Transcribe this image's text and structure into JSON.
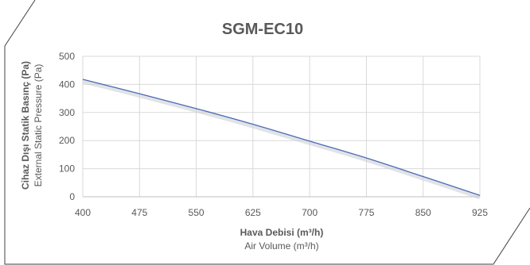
{
  "chart_data": {
    "type": "line",
    "title": "SGM-EC10",
    "xlabel": "Hava Debisi (m³/h)",
    "xlabel_secondary": "Air Volume (m³/h)",
    "ylabel": "Cihaz Dışı Statik Basınç (Pa)",
    "ylabel_secondary": "External Static Pressure (Pa)",
    "xlim": [
      400,
      925
    ],
    "ylim": [
      0,
      500
    ],
    "x_ticks": [
      "400",
      "475",
      "550",
      "625",
      "700",
      "775",
      "850",
      "925"
    ],
    "y_ticks": [
      "0",
      "100",
      "200",
      "300",
      "400",
      "500"
    ],
    "grid": true,
    "legend": "none",
    "series": [
      {
        "color": "#4a6ab5",
        "x": [
          400,
          475,
          550,
          625,
          700,
          775,
          850,
          925
        ],
        "y": [
          418,
          367,
          314,
          258,
          198,
          138,
          72,
          5
        ]
      }
    ]
  }
}
